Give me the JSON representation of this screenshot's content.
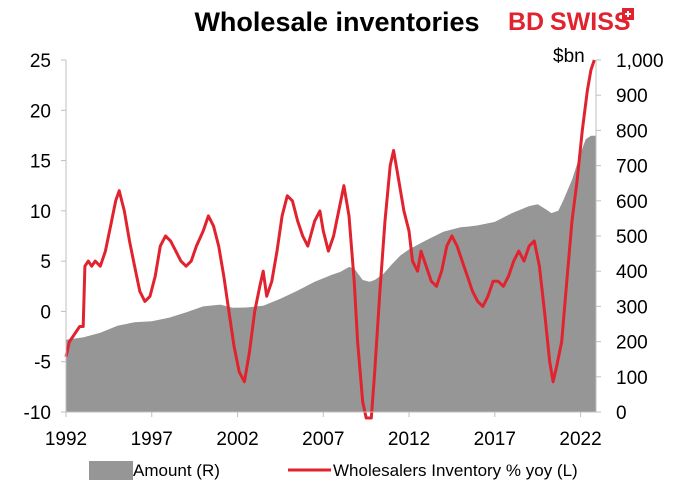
{
  "title": "Wholesale inventories",
  "logo": {
    "part1": "BD",
    "part2": "SWISS",
    "color": "#e1232f",
    "plus_color": "#e1232f"
  },
  "colors": {
    "area": "#969696",
    "line": "#e1232f"
  },
  "chart_data": {
    "type": "line",
    "title": "Wholesale inventories",
    "x_ticks": [
      "1992",
      "1997",
      "2002",
      "2007",
      "2012",
      "2017",
      "2022"
    ],
    "xlim": [
      1992.0,
      2022.9
    ],
    "left_axis": {
      "ticks": [
        "-10",
        "-5",
        "0",
        "5",
        "10",
        "15",
        "20",
        "25"
      ],
      "ylim": [
        -10,
        25
      ]
    },
    "right_axis": {
      "unit": "$bn",
      "ticks": [
        "0",
        "100",
        "200",
        "300",
        "400",
        "500",
        "600",
        "700",
        "800",
        "900",
        "1,000"
      ],
      "ylim": [
        0,
        1000
      ]
    },
    "grid": false,
    "legend_position": "bottom",
    "series": [
      {
        "name": "Amount (R)",
        "kind": "area",
        "axis": "right",
        "points": [
          [
            1992.0,
            205
          ],
          [
            1993.0,
            212
          ],
          [
            1994.0,
            225
          ],
          [
            1995.0,
            245
          ],
          [
            1996.0,
            255
          ],
          [
            1997.0,
            258
          ],
          [
            1998.0,
            268
          ],
          [
            1999.0,
            283
          ],
          [
            2000.0,
            300
          ],
          [
            2001.0,
            305
          ],
          [
            2001.7,
            296
          ],
          [
            2002.5,
            297
          ],
          [
            2003.5,
            302
          ],
          [
            2004.5,
            322
          ],
          [
            2005.5,
            345
          ],
          [
            2006.5,
            370
          ],
          [
            2007.5,
            390
          ],
          [
            2008.0,
            398
          ],
          [
            2008.5,
            412
          ],
          [
            2008.8,
            408
          ],
          [
            2009.3,
            375
          ],
          [
            2009.7,
            370
          ],
          [
            2010.0,
            375
          ],
          [
            2010.5,
            392
          ],
          [
            2011.0,
            420
          ],
          [
            2011.5,
            445
          ],
          [
            2012.0,
            462
          ],
          [
            2013.0,
            488
          ],
          [
            2014.0,
            512
          ],
          [
            2015.0,
            525
          ],
          [
            2015.5,
            527
          ],
          [
            2016.0,
            530
          ],
          [
            2017.0,
            540
          ],
          [
            2018.0,
            565
          ],
          [
            2019.0,
            585
          ],
          [
            2019.5,
            590
          ],
          [
            2020.0,
            575
          ],
          [
            2020.3,
            565
          ],
          [
            2020.7,
            572
          ],
          [
            2021.0,
            602
          ],
          [
            2021.5,
            660
          ],
          [
            2022.0,
            735
          ],
          [
            2022.3,
            775
          ],
          [
            2022.6,
            785
          ],
          [
            2022.9,
            785
          ]
        ]
      },
      {
        "name": "Wholesalers Inventory % yoy (L)",
        "kind": "line",
        "axis": "left",
        "points": [
          [
            1992.0,
            -4.5
          ],
          [
            1992.2,
            -3
          ],
          [
            1992.4,
            -2.5
          ],
          [
            1992.6,
            -2
          ],
          [
            1992.8,
            -1.5
          ],
          [
            1993.0,
            -1.5
          ],
          [
            1993.1,
            4.5
          ],
          [
            1993.3,
            5
          ],
          [
            1993.5,
            4.5
          ],
          [
            1993.7,
            5
          ],
          [
            1994.0,
            4.5
          ],
          [
            1994.3,
            6
          ],
          [
            1994.6,
            8.5
          ],
          [
            1994.9,
            11
          ],
          [
            1995.1,
            12
          ],
          [
            1995.4,
            10
          ],
          [
            1995.7,
            7
          ],
          [
            1996.0,
            4.5
          ],
          [
            1996.3,
            2
          ],
          [
            1996.6,
            1
          ],
          [
            1996.9,
            1.5
          ],
          [
            1997.2,
            3.5
          ],
          [
            1997.5,
            6.5
          ],
          [
            1997.8,
            7.5
          ],
          [
            1998.1,
            7
          ],
          [
            1998.4,
            6
          ],
          [
            1998.7,
            5
          ],
          [
            1999.0,
            4.5
          ],
          [
            1999.3,
            5
          ],
          [
            1999.6,
            6.5
          ],
          [
            2000.0,
            8
          ],
          [
            2000.3,
            9.5
          ],
          [
            2000.6,
            8.5
          ],
          [
            2000.9,
            6.5
          ],
          [
            2001.2,
            3.5
          ],
          [
            2001.5,
            0
          ],
          [
            2001.8,
            -3.5
          ],
          [
            2002.1,
            -6
          ],
          [
            2002.4,
            -7
          ],
          [
            2002.7,
            -4
          ],
          [
            2003.0,
            0
          ],
          [
            2003.3,
            2.5
          ],
          [
            2003.5,
            4
          ],
          [
            2003.7,
            1.5
          ],
          [
            2004.0,
            3
          ],
          [
            2004.3,
            6
          ],
          [
            2004.6,
            9.5
          ],
          [
            2004.9,
            11.5
          ],
          [
            2005.2,
            11
          ],
          [
            2005.5,
            9
          ],
          [
            2005.8,
            7.5
          ],
          [
            2006.1,
            6.5
          ],
          [
            2006.5,
            9
          ],
          [
            2006.8,
            10
          ],
          [
            2007.0,
            8
          ],
          [
            2007.3,
            6
          ],
          [
            2007.6,
            7.5
          ],
          [
            2007.9,
            10
          ],
          [
            2008.2,
            12.5
          ],
          [
            2008.5,
            9.5
          ],
          [
            2008.8,
            3
          ],
          [
            2009.0,
            -3
          ],
          [
            2009.3,
            -9
          ],
          [
            2009.5,
            -12
          ],
          [
            2009.8,
            -11
          ],
          [
            2010.0,
            -6
          ],
          [
            2010.3,
            2
          ],
          [
            2010.6,
            9
          ],
          [
            2010.9,
            14.5
          ],
          [
            2011.1,
            16
          ],
          [
            2011.4,
            13
          ],
          [
            2011.7,
            10
          ],
          [
            2012.0,
            8
          ],
          [
            2012.2,
            5
          ],
          [
            2012.5,
            4
          ],
          [
            2012.7,
            6
          ],
          [
            2013.0,
            4.5
          ],
          [
            2013.3,
            3
          ],
          [
            2013.6,
            2.5
          ],
          [
            2013.9,
            4
          ],
          [
            2014.2,
            6.5
          ],
          [
            2014.5,
            7.5
          ],
          [
            2014.8,
            6.5
          ],
          [
            2015.1,
            5
          ],
          [
            2015.4,
            3.5
          ],
          [
            2015.7,
            2
          ],
          [
            2016.0,
            1
          ],
          [
            2016.3,
            0.5
          ],
          [
            2016.6,
            1.5
          ],
          [
            2016.9,
            3
          ],
          [
            2017.2,
            3
          ],
          [
            2017.5,
            2.5
          ],
          [
            2017.8,
            3.5
          ],
          [
            2018.1,
            5
          ],
          [
            2018.4,
            6
          ],
          [
            2018.7,
            5
          ],
          [
            2019.0,
            6.5
          ],
          [
            2019.3,
            7
          ],
          [
            2019.6,
            4.5
          ],
          [
            2019.9,
            0
          ],
          [
            2020.2,
            -5
          ],
          [
            2020.4,
            -7
          ],
          [
            2020.6,
            -5.5
          ],
          [
            2020.9,
            -3
          ],
          [
            2021.2,
            3
          ],
          [
            2021.5,
            9
          ],
          [
            2021.8,
            13
          ],
          [
            2022.1,
            18
          ],
          [
            2022.4,
            22
          ],
          [
            2022.6,
            24
          ],
          [
            2022.8,
            25
          ]
        ]
      }
    ]
  }
}
